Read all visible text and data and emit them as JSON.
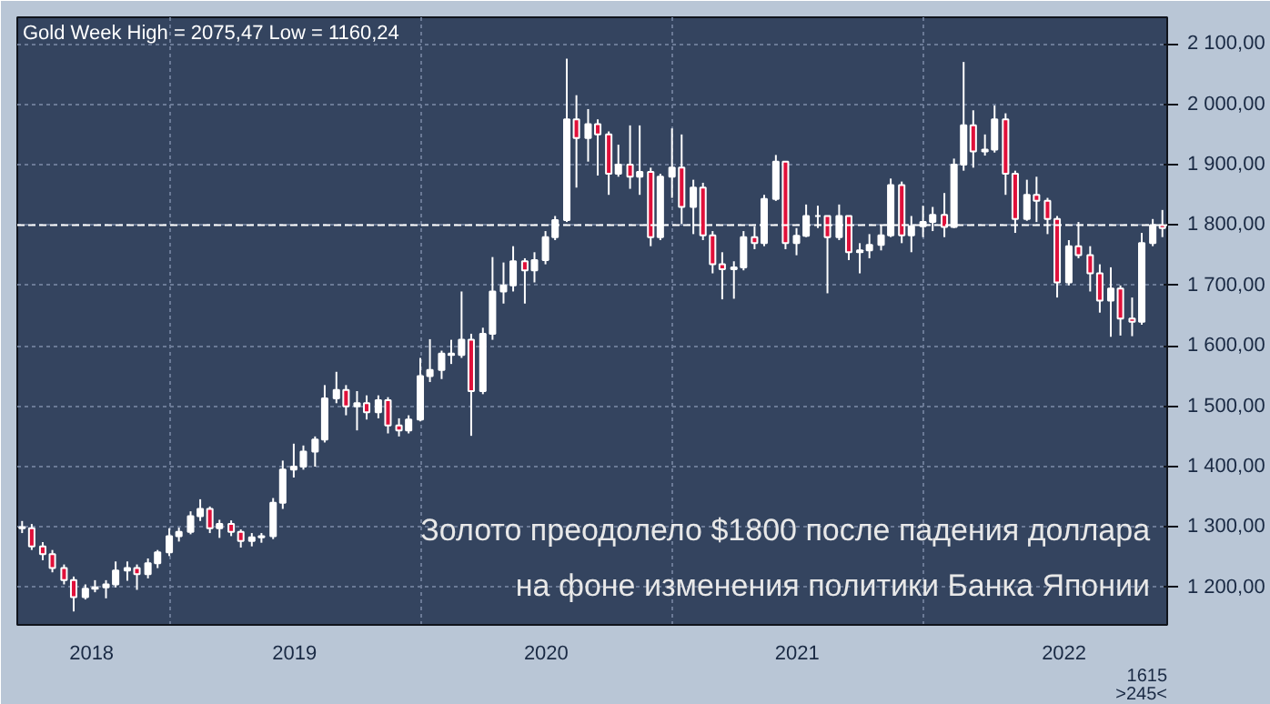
{
  "chart_data": {
    "type": "candlestick",
    "title": "Gold Week High = 2075,47 Low = 1160,24",
    "x": [
      "2018-06-01",
      "2018-06-15",
      "2018-07-01",
      "2018-07-15",
      "2018-08-01",
      "2018-08-15",
      "2018-09-01",
      "2018-09-15",
      "2018-10-01",
      "2018-10-15",
      "2018-11-01",
      "2018-11-15",
      "2018-12-01",
      "2018-12-15",
      "2019-01-01",
      "2019-01-15",
      "2019-02-01",
      "2019-02-15",
      "2019-03-01",
      "2019-03-15",
      "2019-04-01",
      "2019-04-15",
      "2019-05-01",
      "2019-05-15",
      "2019-06-01",
      "2019-06-15",
      "2019-07-01",
      "2019-07-15",
      "2019-08-01",
      "2019-08-15",
      "2019-09-01",
      "2019-09-15",
      "2019-10-01",
      "2019-10-15",
      "2019-11-01",
      "2019-11-15",
      "2019-12-01",
      "2019-12-15",
      "2020-01-01",
      "2020-01-15",
      "2020-02-01",
      "2020-02-15",
      "2020-03-01",
      "2020-03-15",
      "2020-04-01",
      "2020-04-15",
      "2020-05-01",
      "2020-05-15",
      "2020-06-01",
      "2020-06-15",
      "2020-07-01",
      "2020-07-15",
      "2020-08-01",
      "2020-08-15",
      "2020-09-01",
      "2020-09-15",
      "2020-10-01",
      "2020-10-15",
      "2020-11-01",
      "2020-11-15",
      "2020-12-01",
      "2020-12-15",
      "2021-01-01",
      "2021-01-15",
      "2021-02-01",
      "2021-02-15",
      "2021-03-01",
      "2021-03-15",
      "2021-04-01",
      "2021-04-15",
      "2021-05-01",
      "2021-05-15",
      "2021-06-01",
      "2021-06-15",
      "2021-07-01",
      "2021-07-15",
      "2021-08-01",
      "2021-08-15",
      "2021-09-01",
      "2021-09-15",
      "2021-10-01",
      "2021-10-15",
      "2021-11-01",
      "2021-11-15",
      "2021-12-01",
      "2021-12-15",
      "2022-01-01",
      "2022-01-15",
      "2022-02-01",
      "2022-02-15",
      "2022-03-01",
      "2022-03-15",
      "2022-04-01",
      "2022-04-15",
      "2022-05-01",
      "2022-05-15",
      "2022-06-01",
      "2022-06-15",
      "2022-07-01",
      "2022-07-15",
      "2022-08-01",
      "2022-08-15",
      "2022-09-01",
      "2022-09-15",
      "2022-10-01",
      "2022-10-15",
      "2022-11-01",
      "2022-11-15",
      "2022-12-01",
      "2022-12-15"
    ],
    "series": [
      {
        "color": "#ffffff",
        "ohlc": [
          [
            1300,
            1310,
            1290,
            1298
          ],
          [
            1298,
            1305,
            1262,
            1268
          ],
          [
            1268,
            1275,
            1245,
            1255
          ],
          [
            1255,
            1262,
            1225,
            1232
          ],
          [
            1232,
            1238,
            1205,
            1212
          ],
          [
            1212,
            1218,
            1160.24,
            1184
          ],
          [
            1184,
            1205,
            1180,
            1198
          ],
          [
            1198,
            1212,
            1192,
            1200
          ],
          [
            1200,
            1212,
            1182,
            1205
          ],
          [
            1205,
            1243,
            1200,
            1228
          ],
          [
            1228,
            1243,
            1211,
            1232
          ],
          [
            1232,
            1238,
            1196,
            1222
          ],
          [
            1222,
            1248,
            1215,
            1240
          ],
          [
            1240,
            1262,
            1232,
            1258
          ],
          [
            1258,
            1298,
            1252,
            1285
          ],
          [
            1285,
            1299,
            1276,
            1292
          ],
          [
            1292,
            1326,
            1288,
            1318
          ],
          [
            1318,
            1346,
            1310,
            1330
          ],
          [
            1330,
            1334,
            1290,
            1298
          ],
          [
            1298,
            1312,
            1282,
            1305
          ],
          [
            1305,
            1311,
            1285,
            1292
          ],
          [
            1292,
            1296,
            1266,
            1277
          ],
          [
            1277,
            1290,
            1268,
            1283
          ],
          [
            1283,
            1290,
            1274,
            1285
          ],
          [
            1285,
            1348,
            1280,
            1340
          ],
          [
            1340,
            1410,
            1330,
            1395
          ],
          [
            1395,
            1438,
            1382,
            1400
          ],
          [
            1400,
            1435,
            1395,
            1425
          ],
          [
            1425,
            1450,
            1400,
            1445
          ],
          [
            1445,
            1535,
            1440,
            1513
          ],
          [
            1513,
            1557,
            1505,
            1527
          ],
          [
            1527,
            1535,
            1485,
            1500
          ],
          [
            1500,
            1525,
            1460,
            1505
          ],
          [
            1505,
            1518,
            1478,
            1490
          ],
          [
            1490,
            1518,
            1480,
            1510
          ],
          [
            1510,
            1515,
            1455,
            1468
          ],
          [
            1468,
            1480,
            1450,
            1460
          ],
          [
            1460,
            1485,
            1455,
            1478
          ],
          [
            1478,
            1580,
            1475,
            1550
          ],
          [
            1550,
            1611,
            1540,
            1560
          ],
          [
            1560,
            1592,
            1545,
            1587
          ],
          [
            1587,
            1610,
            1570,
            1585
          ],
          [
            1585,
            1690,
            1580,
            1610
          ],
          [
            1610,
            1620,
            1451,
            1525
          ],
          [
            1525,
            1630,
            1520,
            1620
          ],
          [
            1620,
            1747,
            1610,
            1690
          ],
          [
            1690,
            1738,
            1670,
            1700
          ],
          [
            1700,
            1765,
            1690,
            1740
          ],
          [
            1740,
            1745,
            1670,
            1725
          ],
          [
            1725,
            1755,
            1705,
            1742
          ],
          [
            1742,
            1790,
            1735,
            1780
          ],
          [
            1780,
            1815,
            1775,
            1808
          ],
          [
            1808,
            2075.47,
            1805,
            1975
          ],
          [
            1975,
            2015,
            1862,
            1944
          ],
          [
            1944,
            1992,
            1905,
            1967
          ],
          [
            1967,
            1975,
            1882,
            1950
          ],
          [
            1950,
            1955,
            1850,
            1885
          ],
          [
            1885,
            1933,
            1880,
            1900
          ],
          [
            1900,
            1965,
            1860,
            1880
          ],
          [
            1880,
            1965,
            1850,
            1888
          ],
          [
            1888,
            1895,
            1765,
            1780
          ],
          [
            1780,
            1885,
            1775,
            1880
          ],
          [
            1880,
            1960,
            1845,
            1895
          ],
          [
            1895,
            1950,
            1802,
            1830
          ],
          [
            1830,
            1875,
            1785,
            1862
          ],
          [
            1862,
            1870,
            1775,
            1783
          ],
          [
            1783,
            1790,
            1720,
            1735
          ],
          [
            1735,
            1755,
            1677,
            1727
          ],
          [
            1727,
            1740,
            1678,
            1730
          ],
          [
            1730,
            1790,
            1725,
            1780
          ],
          [
            1780,
            1798,
            1760,
            1770
          ],
          [
            1770,
            1850,
            1765,
            1843
          ],
          [
            1843,
            1916,
            1840,
            1905
          ],
          [
            1905,
            1905,
            1760,
            1770
          ],
          [
            1770,
            1795,
            1750,
            1782
          ],
          [
            1782,
            1834,
            1780,
            1815
          ],
          [
            1815,
            1832,
            1795,
            1815
          ],
          [
            1815,
            1815,
            1687,
            1780
          ],
          [
            1780,
            1834,
            1775,
            1815
          ],
          [
            1815,
            1815,
            1742,
            1755
          ],
          [
            1755,
            1770,
            1720,
            1758
          ],
          [
            1758,
            1785,
            1745,
            1767
          ],
          [
            1767,
            1800,
            1758,
            1783
          ],
          [
            1783,
            1877,
            1780,
            1866
          ],
          [
            1866,
            1872,
            1770,
            1783
          ],
          [
            1783,
            1815,
            1755,
            1798
          ],
          [
            1798,
            1832,
            1780,
            1805
          ],
          [
            1805,
            1830,
            1790,
            1817
          ],
          [
            1817,
            1853,
            1780,
            1797
          ],
          [
            1797,
            1910,
            1795,
            1900
          ],
          [
            1900,
            2070,
            1890,
            1965
          ],
          [
            1965,
            1990,
            1895,
            1922
          ],
          [
            1922,
            1950,
            1915,
            1925
          ],
          [
            1925,
            1998,
            1920,
            1975
          ],
          [
            1975,
            1985,
            1850,
            1885
          ],
          [
            1885,
            1890,
            1787,
            1810
          ],
          [
            1810,
            1875,
            1807,
            1850
          ],
          [
            1850,
            1880,
            1805,
            1840
          ],
          [
            1840,
            1845,
            1785,
            1810
          ],
          [
            1810,
            1815,
            1680,
            1705
          ],
          [
            1705,
            1775,
            1700,
            1765
          ],
          [
            1765,
            1805,
            1745,
            1750
          ],
          [
            1750,
            1765,
            1690,
            1720
          ],
          [
            1720,
            1735,
            1655,
            1675
          ],
          [
            1675,
            1730,
            1615,
            1695
          ],
          [
            1695,
            1700,
            1617,
            1645
          ],
          [
            1645,
            1680,
            1616,
            1640
          ],
          [
            1640,
            1787,
            1635,
            1770
          ],
          [
            1770,
            1810,
            1765,
            1800
          ],
          [
            1800,
            1825,
            1780,
            1795
          ]
        ]
      }
    ],
    "xlim": [
      "2018-05-25",
      "2022-12-22"
    ],
    "xticks": [
      {
        "value": "2018-09-10",
        "label": "2018"
      },
      {
        "value": "2019-01-01",
        "label": null
      },
      {
        "value": "2019-07-02",
        "label": "2019"
      },
      {
        "value": "2020-01-01",
        "label": null
      },
      {
        "value": "2020-07-02",
        "label": "2020"
      },
      {
        "value": "2021-01-01",
        "label": null
      },
      {
        "value": "2021-07-02",
        "label": "2021"
      },
      {
        "value": "2022-01-01",
        "label": null
      },
      {
        "value": "2022-07-25",
        "label": "2022"
      }
    ],
    "ylim": [
      1138,
      2144
    ],
    "yticks": [
      {
        "value": 1200,
        "label": "1 200,00"
      },
      {
        "value": 1300,
        "label": "1 300,00"
      },
      {
        "value": 1400,
        "label": "1 400,00"
      },
      {
        "value": 1500,
        "label": "1 500,00"
      },
      {
        "value": 1600,
        "label": "1 600,00"
      },
      {
        "value": 1700,
        "label": "1 700,00"
      },
      {
        "value": 1800,
        "label": null
      },
      {
        "value": 1900,
        "label": "1 900,00"
      },
      {
        "value": 2000,
        "label": "2 000,00"
      },
      {
        "value": 2100,
        "label": "2 100,00"
      }
    ],
    "ref_lines": [
      {
        "axis": "y",
        "value": 1800,
        "label": "1 800,00",
        "color": "#ffffff",
        "line_style": "dashed"
      }
    ],
    "grid": true,
    "annotations": [
      "Золото преодолело $1800 после падения доллара\nна фоне изменения политики Банка Японии",
      "1615",
      ">245<"
    ]
  }
}
